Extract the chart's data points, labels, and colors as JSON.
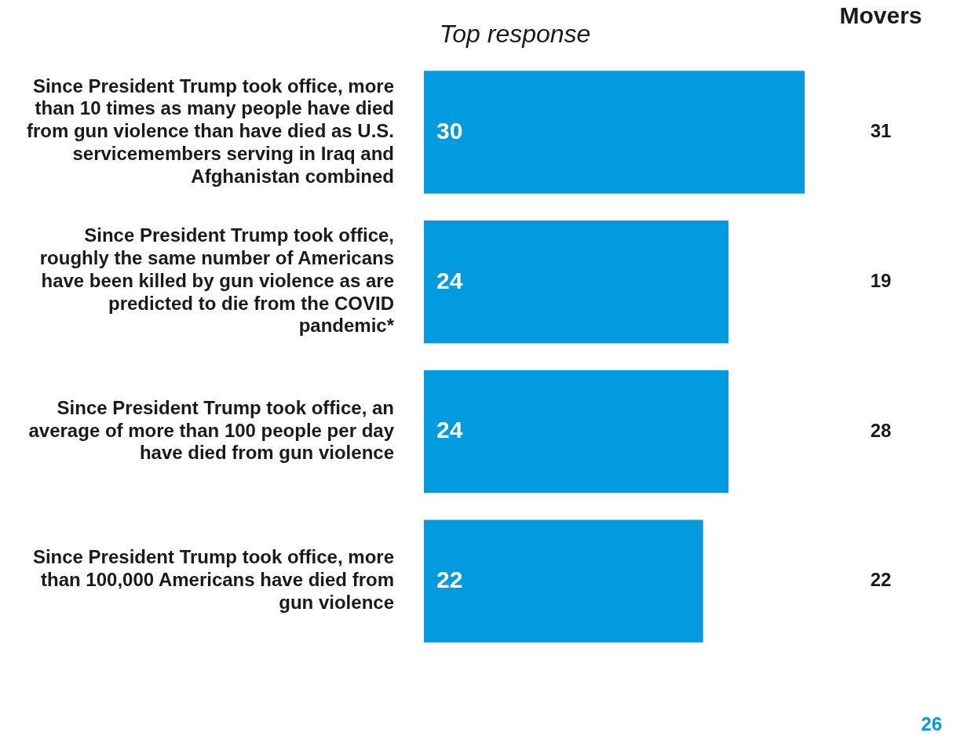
{
  "chart_data": {
    "type": "bar",
    "orientation": "horizontal",
    "subtitle": "Top response",
    "categories": [
      "Since President Trump took office, more than 10 times as many people have died from gun violence than have died as U.S. servicemembers serving in Iraq and Afghanistan combined",
      "Since President Trump took office, roughly the same number of Americans have been killed by gun violence as are predicted to die from the COVID pandemic*",
      "Since President Trump took office, an average of more than 100 people per day have died from gun violence",
      "Since President Trump took office, more than 100,000 Americans have died from gun violence"
    ],
    "values": [
      30,
      24,
      24,
      22
    ],
    "color": "#039be0",
    "data_labels": true,
    "xlim": [
      0,
      30
    ],
    "tick_labels": "y",
    "annotations": [
      "Movers",
      "31",
      "19",
      "28",
      "22",
      "26"
    ]
  }
}
